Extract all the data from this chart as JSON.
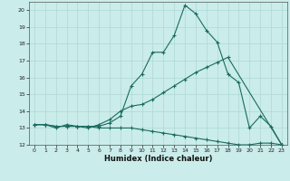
{
  "xlabel": "Humidex (Indice chaleur)",
  "background_color": "#caecea",
  "grid_color": "#aed8d4",
  "line_color": "#1a6b5e",
  "ylim": [
    12,
    20.5
  ],
  "xlim": [
    -0.5,
    23.5
  ],
  "yticks": [
    12,
    13,
    14,
    15,
    16,
    17,
    18,
    19,
    20
  ],
  "xticks": [
    0,
    1,
    2,
    3,
    4,
    5,
    6,
    7,
    8,
    9,
    10,
    11,
    12,
    13,
    14,
    15,
    16,
    17,
    18,
    19,
    20,
    21,
    22,
    23
  ],
  "line1_x": [
    0,
    1,
    2,
    3,
    4,
    5,
    6,
    7,
    8,
    9,
    10,
    11,
    12,
    13,
    14,
    15,
    16,
    17,
    18,
    19,
    20,
    21,
    22,
    23
  ],
  "line1_y": [
    13.2,
    13.2,
    13.1,
    13.1,
    13.1,
    13.1,
    13.1,
    13.3,
    13.7,
    15.5,
    16.2,
    17.5,
    17.5,
    18.5,
    20.3,
    19.8,
    18.8,
    18.1,
    16.2,
    15.7,
    13.0,
    13.7,
    13.1,
    12.0
  ],
  "line2_x": [
    0,
    1,
    2,
    3,
    4,
    5,
    6,
    7,
    8,
    9,
    10,
    11,
    12,
    13,
    14,
    15,
    16,
    17,
    18,
    23
  ],
  "line2_y": [
    13.2,
    13.2,
    13.0,
    13.2,
    13.1,
    13.0,
    13.2,
    13.5,
    14.0,
    14.3,
    14.4,
    14.7,
    15.1,
    15.5,
    15.9,
    16.3,
    16.6,
    16.9,
    17.2,
    12.0
  ],
  "line3_x": [
    0,
    1,
    2,
    3,
    4,
    5,
    6,
    7,
    8,
    9,
    10,
    11,
    12,
    13,
    14,
    15,
    16,
    17,
    18,
    19,
    20,
    21,
    22,
    23
  ],
  "line3_y": [
    13.2,
    13.2,
    13.1,
    13.1,
    13.1,
    13.1,
    13.0,
    13.0,
    13.0,
    13.0,
    12.9,
    12.8,
    12.7,
    12.6,
    12.5,
    12.4,
    12.3,
    12.2,
    12.1,
    12.0,
    12.0,
    12.1,
    12.1,
    12.0
  ]
}
